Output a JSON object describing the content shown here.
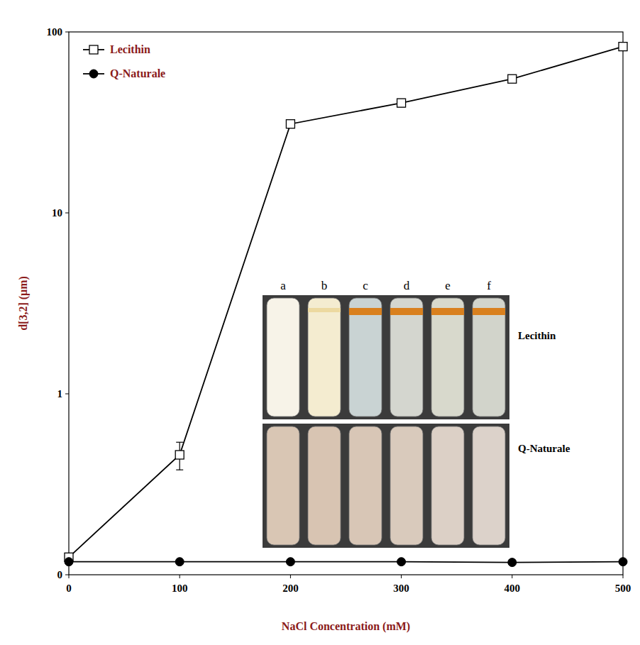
{
  "chart_data": {
    "type": "line",
    "x_label": "NaCl Concentration  (mM)",
    "y_label": "d[3,2] (μm)",
    "x": [
      0,
      100,
      200,
      300,
      400,
      500
    ],
    "series": [
      {
        "name": "Lecithin",
        "color": "#000000",
        "marker": "square",
        "values": [
          0.125,
          0.46,
          31,
          40.5,
          55,
          83
        ],
        "errors": [
          0.005,
          0.08,
          1.5,
          2,
          2,
          4
        ]
      },
      {
        "name": "Q-Naturale",
        "color": "#000000",
        "marker": "circle",
        "values": [
          0.118,
          0.118,
          0.118,
          0.118,
          0.117,
          0.118
        ]
      }
    ],
    "log": "y",
    "xlim": [
      0,
      500
    ],
    "xticks": [
      0,
      100,
      200,
      300,
      400,
      500
    ],
    "ylim": [
      0.1,
      100
    ],
    "yticks": [
      {
        "value": 0.1,
        "label": "0"
      },
      1,
      10,
      100
    ],
    "legend": "upper left",
    "grid": false,
    "annotations": {
      "tube_labels": [
        "a",
        "b",
        "c",
        "d",
        "e",
        "f"
      ],
      "row_labels": [
        "Lecithin",
        "Q-Naturale"
      ]
    }
  }
}
